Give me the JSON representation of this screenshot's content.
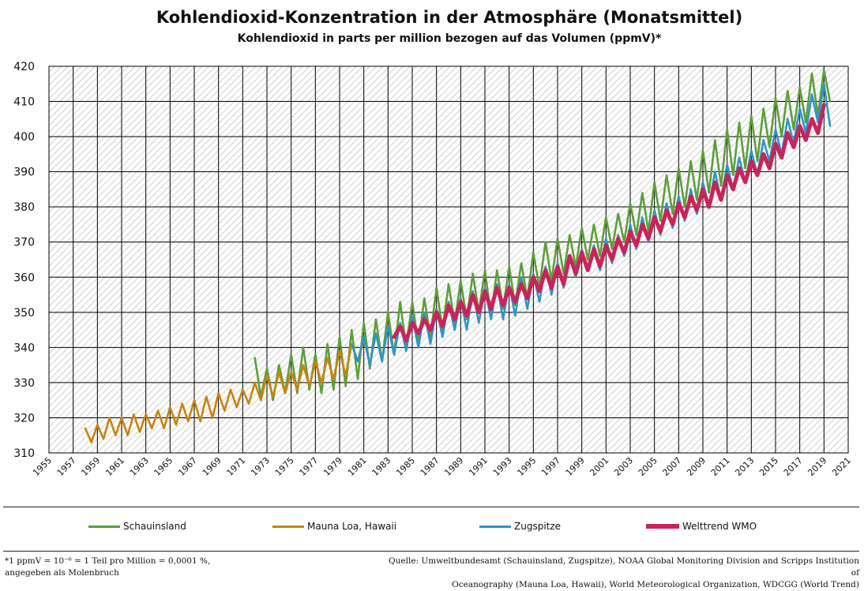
{
  "chart_data": {
    "type": "line",
    "title": "Kohlendioxid-Konzentration in der Atmosphäre (Monatsmittel)",
    "subtitle": "Kohlendioxid in parts per million bezogen auf das Volumen (ppmV)*",
    "xlabel": "",
    "ylabel": "",
    "xlim": [
      1955,
      2021
    ],
    "ylim": [
      310,
      420
    ],
    "grid": true,
    "legend_position": "bottom",
    "x_ticks": [
      "1955",
      "1957",
      "1959",
      "1961",
      "1963",
      "1965",
      "1967",
      "1969",
      "1971",
      "1973",
      "1975",
      "1977",
      "1979",
      "1981",
      "1983",
      "1985",
      "1987",
      "1989",
      "1991",
      "1993",
      "1995",
      "1997",
      "1999",
      "2001",
      "2003",
      "2005",
      "2007",
      "2009",
      "2011",
      "2013",
      "2015",
      "2017",
      "2019",
      "2021"
    ],
    "y_ticks": [
      "310",
      "320",
      "330",
      "340",
      "350",
      "360",
      "370",
      "380",
      "390",
      "400",
      "410",
      "420"
    ],
    "series": [
      {
        "name": "Schauinsland",
        "color": "#5e9e3a",
        "x": [
          1972.0,
          1972.5,
          1973.0,
          1973.5,
          1974.0,
          1974.5,
          1975.0,
          1975.5,
          1976.0,
          1976.5,
          1977.0,
          1977.5,
          1978.0,
          1978.5,
          1979.0,
          1979.5,
          1980.0,
          1980.5,
          1981.0,
          1981.5,
          1982.0,
          1982.5,
          1983.0,
          1983.5,
          1984.0,
          1984.5,
          1985.0,
          1985.5,
          1986.0,
          1986.5,
          1987.0,
          1987.5,
          1988.0,
          1988.5,
          1989.0,
          1989.5,
          1990.0,
          1990.5,
          1991.0,
          1991.5,
          1992.0,
          1992.5,
          1993.0,
          1993.5,
          1994.0,
          1994.5,
          1995.0,
          1995.5,
          1996.0,
          1996.5,
          1997.0,
          1997.5,
          1998.0,
          1998.5,
          1999.0,
          1999.5,
          2000.0,
          2000.5,
          2001.0,
          2001.5,
          2002.0,
          2002.5,
          2003.0,
          2003.5,
          2004.0,
          2004.5,
          2005.0,
          2005.5,
          2006.0,
          2006.5,
          2007.0,
          2007.5,
          2008.0,
          2008.5,
          2009.0,
          2009.5,
          2010.0,
          2010.5,
          2011.0,
          2011.5,
          2012.0,
          2012.5,
          2013.0,
          2013.5,
          2014.0,
          2014.5,
          2015.0,
          2015.5,
          2016.0,
          2016.5,
          2017.0,
          2017.5,
          2018.0,
          2018.5,
          2019.0,
          2019.5
        ],
        "y": [
          337,
          326,
          334,
          325,
          335,
          327,
          338,
          327,
          340,
          328,
          338,
          327,
          341,
          328,
          343,
          329,
          345,
          331,
          347,
          334,
          348,
          336,
          350,
          338,
          353,
          340,
          353,
          341,
          354,
          343,
          357,
          345,
          358,
          347,
          359,
          348,
          361,
          350,
          362,
          349,
          362,
          351,
          363,
          352,
          364,
          354,
          367,
          357,
          370,
          359,
          371,
          361,
          372,
          363,
          374,
          365,
          375,
          366,
          377,
          368,
          378,
          370,
          381,
          372,
          384,
          373,
          387,
          376,
          389,
          378,
          391,
          380,
          393,
          382,
          396,
          384,
          399,
          386,
          402,
          389,
          404,
          391,
          406,
          393,
          408,
          397,
          411,
          400,
          413,
          402,
          414,
          404,
          418,
          406,
          419,
          410
        ]
      },
      {
        "name": "Mauna Loa, Hawaii",
        "color": "#c8840f",
        "x": [
          1958.0,
          1958.5,
          1959.0,
          1959.5,
          1960.0,
          1960.5,
          1961.0,
          1961.5,
          1962.0,
          1962.5,
          1963.0,
          1963.5,
          1964.0,
          1964.5,
          1965.0,
          1965.5,
          1966.0,
          1966.5,
          1967.0,
          1967.5,
          1968.0,
          1968.5,
          1969.0,
          1969.5,
          1970.0,
          1970.5,
          1971.0,
          1971.5,
          1972.0,
          1972.5,
          1973.0,
          1973.5,
          1974.0,
          1974.5,
          1975.0,
          1975.5,
          1976.0,
          1976.5,
          1977.0,
          1977.5,
          1978.0,
          1978.5,
          1979.0,
          1979.5,
          1980.0,
          1980.5,
          1981.0
        ],
        "y": [
          317,
          313,
          318,
          314,
          320,
          315,
          320,
          315,
          321,
          316,
          321,
          317,
          322,
          317,
          323,
          318,
          324,
          319,
          325,
          319,
          326,
          320,
          327,
          322,
          328,
          323,
          328,
          324,
          330,
          325,
          332,
          326,
          333,
          327,
          333,
          328,
          335,
          329,
          336,
          330,
          337,
          331,
          339,
          332,
          341,
          336,
          342
        ]
      },
      {
        "name": "Zugspitze",
        "color": "#2e95c8",
        "x": [
          1980.0,
          1980.5,
          1981.0,
          1981.5,
          1982.0,
          1982.5,
          1983.0,
          1983.5,
          1984.0,
          1984.5,
          1985.0,
          1985.5,
          1986.0,
          1986.5,
          1987.0,
          1987.5,
          1988.0,
          1988.5,
          1989.0,
          1989.5,
          1990.0,
          1990.5,
          1991.0,
          1991.5,
          1992.0,
          1992.5,
          1993.0,
          1993.5,
          1994.0,
          1994.5,
          1995.0,
          1995.5,
          1996.0,
          1996.5,
          1997.0,
          1997.5,
          1998.0,
          1998.5,
          1999.0,
          1999.5,
          2000.0,
          2000.5,
          2001.0,
          2001.5,
          2002.0,
          2002.5,
          2003.0,
          2003.5,
          2004.0,
          2004.5,
          2005.0,
          2005.5,
          2006.0,
          2006.5,
          2007.0,
          2007.5,
          2008.0,
          2008.5,
          2009.0,
          2009.5,
          2010.0,
          2010.5,
          2011.0,
          2011.5,
          2012.0,
          2012.5,
          2013.0,
          2013.5,
          2014.0,
          2014.5,
          2015.0,
          2015.5,
          2016.0,
          2016.5,
          2017.0,
          2017.5,
          2018.0,
          2018.5,
          2019.0,
          2019.5
        ],
        "y": [
          341,
          336,
          343,
          335,
          344,
          336,
          346,
          338,
          347,
          339,
          349,
          340,
          350,
          341,
          351,
          343,
          353,
          345,
          354,
          345,
          356,
          347,
          357,
          348,
          358,
          348,
          358,
          349,
          360,
          351,
          361,
          353,
          363,
          355,
          364,
          357,
          366,
          360,
          368,
          362,
          369,
          362,
          371,
          364,
          372,
          366,
          375,
          368,
          377,
          370,
          379,
          372,
          381,
          374,
          383,
          376,
          385,
          378,
          387,
          380,
          390,
          382,
          392,
          385,
          394,
          387,
          396,
          389,
          399,
          393,
          402,
          395,
          405,
          398,
          408,
          401,
          412,
          404,
          415,
          403
        ]
      },
      {
        "name": "Welttrend WMO",
        "color": "#c8245a",
        "x": [
          1983.5,
          1984.0,
          1984.5,
          1985.0,
          1985.5,
          1986.0,
          1986.5,
          1987.0,
          1987.5,
          1988.0,
          1988.5,
          1989.0,
          1989.5,
          1990.0,
          1990.5,
          1991.0,
          1991.5,
          1992.0,
          1992.5,
          1993.0,
          1993.5,
          1994.0,
          1994.5,
          1995.0,
          1995.5,
          1996.0,
          1996.5,
          1997.0,
          1997.5,
          1998.0,
          1998.5,
          1999.0,
          1999.5,
          2000.0,
          2000.5,
          2001.0,
          2001.5,
          2002.0,
          2002.5,
          2003.0,
          2003.5,
          2004.0,
          2004.5,
          2005.0,
          2005.5,
          2006.0,
          2006.5,
          2007.0,
          2007.5,
          2008.0,
          2008.5,
          2009.0,
          2009.5,
          2010.0,
          2010.5,
          2011.0,
          2011.5,
          2012.0,
          2012.5,
          2013.0,
          2013.5,
          2014.0,
          2014.5,
          2015.0,
          2015.5,
          2016.0,
          2016.5,
          2017.0,
          2017.5,
          2018.0,
          2018.5,
          2019.0
        ],
        "y": [
          343,
          346,
          342,
          347,
          344,
          348,
          345,
          350,
          346,
          352,
          348,
          353,
          349,
          355,
          350,
          356,
          351,
          357,
          352,
          357,
          353,
          358,
          354,
          360,
          356,
          362,
          357,
          363,
          358,
          366,
          361,
          367,
          362,
          368,
          363,
          369,
          365,
          371,
          367,
          373,
          369,
          375,
          371,
          377,
          373,
          379,
          375,
          381,
          377,
          383,
          379,
          385,
          380,
          387,
          382,
          389,
          385,
          391,
          387,
          393,
          389,
          395,
          391,
          398,
          394,
          401,
          397,
          403,
          399,
          405,
          401,
          409
        ]
      }
    ]
  },
  "legend": [
    {
      "label": "Schauinsland",
      "color": "#5e9e3a"
    },
    {
      "label": "Mauna Loa, Hawaii",
      "color": "#c8840f"
    },
    {
      "label": "Zugspitze",
      "color": "#2e95c8"
    },
    {
      "label": "Welttrend WMO",
      "color": "#c8245a"
    }
  ],
  "footnote": "*1 ppmV = 10⁻⁶ = 1 Teil pro Million = 0,0001 %,\nangegeben als Molenbruch",
  "source": "Quelle: Umweltbundesamt (Schauinsland, Zugspitze), NOAA Global Monitoring Division and Scripps Institution of\nOceanography  (Mauna Loa, Hawaii), World Meteorological Organization, WDCGG (World Trend)"
}
